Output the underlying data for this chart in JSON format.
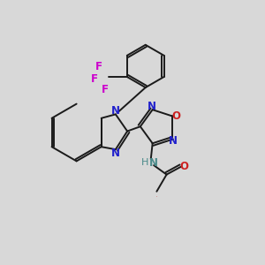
{
  "bg": "#d8d8d8",
  "bc": "#1a1a1a",
  "nc": "#2020cc",
  "oc": "#cc2020",
  "fc": "#cc00cc",
  "nhc": "#4a8a8a",
  "lw": 1.4,
  "fs": 8.5,
  "figsize": [
    3.0,
    3.0
  ],
  "dpi": 100,
  "xlim": [
    0,
    10
  ],
  "ylim": [
    0,
    10
  ]
}
